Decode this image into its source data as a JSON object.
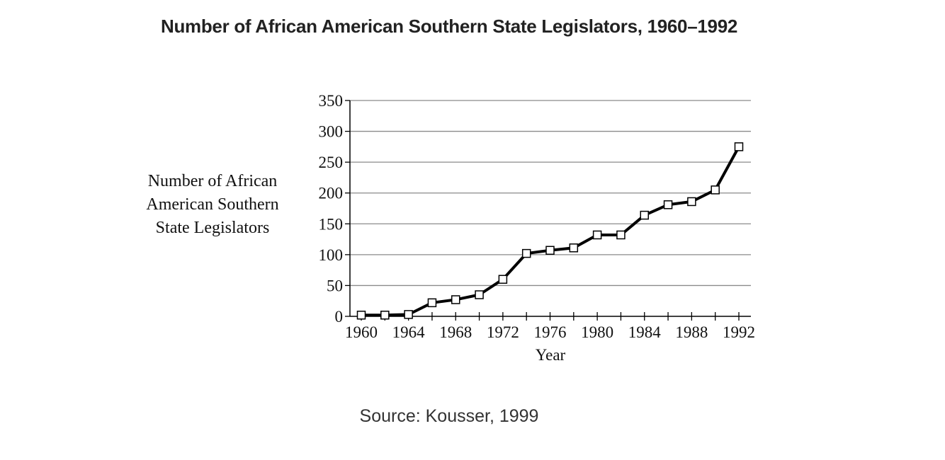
{
  "chart_data": {
    "type": "line",
    "title": "Number of African American Southern State Legislators, 1960–1992",
    "xlabel": "Year",
    "ylabel_lines": [
      "Number of African",
      "American Southern",
      "State Legislators"
    ],
    "source": "Source: Kousser, 1999",
    "x": [
      1960,
      1962,
      1964,
      1966,
      1968,
      1970,
      1972,
      1974,
      1976,
      1978,
      1980,
      1982,
      1984,
      1986,
      1988,
      1990,
      1992
    ],
    "series": [
      {
        "values": [
          2,
          2,
          3,
          22,
          27,
          35,
          60,
          102,
          107,
          111,
          132,
          132,
          164,
          181,
          186,
          205,
          275
        ]
      }
    ],
    "xlim": [
      1960,
      1992
    ],
    "x_tick_labels": [
      "1960",
      "1964",
      "1968",
      "1972",
      "1976",
      "1980",
      "1984",
      "1988",
      "1992"
    ],
    "x_tick_values": [
      1960,
      1964,
      1968,
      1972,
      1976,
      1980,
      1984,
      1988,
      1992
    ],
    "x_minor_ticks": [
      1960,
      1962,
      1964,
      1966,
      1968,
      1970,
      1972,
      1974,
      1976,
      1978,
      1980,
      1982,
      1984,
      1986,
      1988,
      1990,
      1992
    ],
    "ylim": [
      0,
      350
    ],
    "y_tick_labels": [
      "0",
      "50",
      "100",
      "150",
      "200",
      "250",
      "300",
      "350"
    ],
    "y_tick_values": [
      0,
      50,
      100,
      150,
      200,
      250,
      300,
      350
    ],
    "grid": true,
    "marker": "open-square",
    "line_color": "#000000",
    "grid_color": "#8a8a8a"
  }
}
